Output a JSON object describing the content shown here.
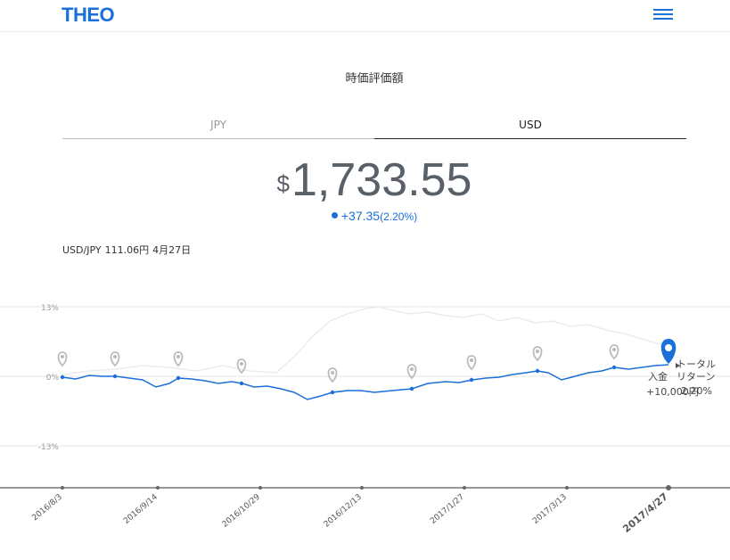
{
  "header": {
    "logo": "THEO",
    "menu_icon": "hamburger-menu-icon"
  },
  "page_title": "時価評価額",
  "tabs": [
    {
      "label": "JPY",
      "active": false
    },
    {
      "label": "USD",
      "active": true
    }
  ],
  "valuation": {
    "currency_symbol": "$",
    "amount": "1,733.55",
    "change": "+37.35",
    "change_pct": "(2.20%)"
  },
  "fx": {
    "pair": "USD/JPY",
    "rate": "111.06円",
    "date": "4月27日"
  },
  "chart_data": {
    "type": "line",
    "y_ticks": [
      "13%",
      "0%",
      "-13%"
    ],
    "ylim": [
      -13,
      13
    ],
    "x_ticks": [
      "2016/8/3",
      "2016/9/14",
      "2016/10/29",
      "2016/12/13",
      "2017/1/27",
      "2017/3/13",
      "2017/4/27"
    ],
    "series": [
      {
        "color": "#1a6fd8",
        "role": "total-return"
      },
      {
        "color": "#e8e8ee",
        "role": "benchmark"
      }
    ],
    "deposit_markers": 10,
    "end_annotation": {
      "deposit_label": "入金",
      "deposit_value": "+10,000円",
      "return_label": "トータル\nリターン",
      "return_value": "2.20%"
    },
    "colors": {
      "accent": "#1a6fd8",
      "pin": "#bbbbbb",
      "active_pin": "#1a6fd8"
    }
  }
}
